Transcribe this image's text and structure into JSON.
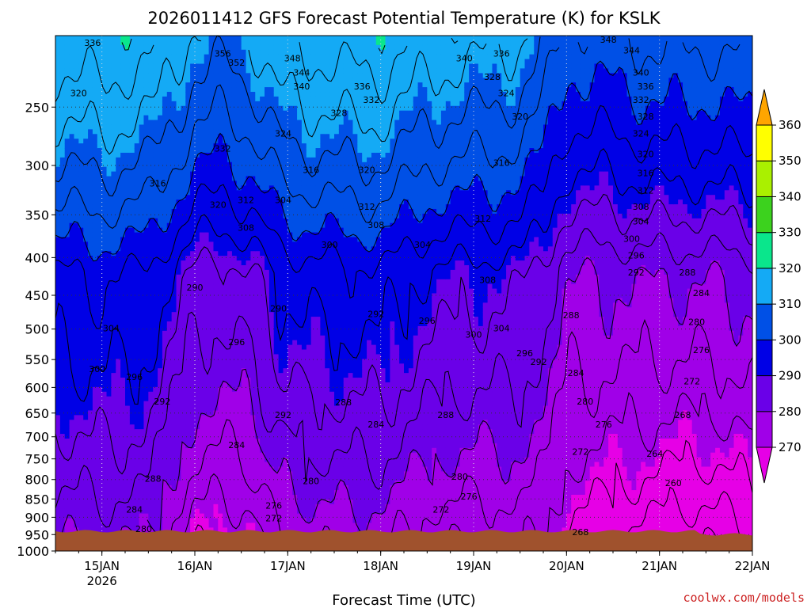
{
  "chart_data": {
    "type": "heatmap",
    "title": "2026011412 GFS Forecast Potential Temperature (K) for KSLK",
    "xlabel": "Forecast Time (UTC)",
    "ylabel": "",
    "credit": "coolwx.com/models",
    "y_axis": {
      "scale": "log",
      "reversed": true,
      "range": [
        1000,
        200
      ],
      "ticks": [
        250,
        300,
        350,
        400,
        450,
        500,
        550,
        600,
        650,
        700,
        750,
        800,
        850,
        900,
        950,
        1000
      ]
    },
    "x_axis": {
      "range": [
        "2026-01-14T12",
        "2026-01-22T00"
      ],
      "ticks": [
        {
          "label": "15JAN",
          "sub": "2026",
          "day": 15
        },
        {
          "label": "16JAN",
          "sub": "",
          "day": 16
        },
        {
          "label": "17JAN",
          "sub": "",
          "day": 17
        },
        {
          "label": "18JAN",
          "sub": "",
          "day": 18
        },
        {
          "label": "19JAN",
          "sub": "",
          "day": 19
        },
        {
          "label": "20JAN",
          "sub": "",
          "day": 20
        },
        {
          "label": "21JAN",
          "sub": "",
          "day": 21
        },
        {
          "label": "22JAN",
          "sub": "",
          "day": 22
        }
      ]
    },
    "grid": true,
    "colorbar": {
      "placement": "right",
      "levels": [
        270,
        280,
        290,
        300,
        310,
        320,
        330,
        340,
        350,
        360
      ],
      "colors": [
        "#e600e6",
        "#a000e8",
        "#6a00e8",
        "#0000e6",
        "#0050e6",
        "#14aaf5",
        "#0ae68c",
        "#3cd21e",
        "#aaf000",
        "#ffff00",
        "#ffa500"
      ],
      "extend": "both"
    },
    "terrain": {
      "pressure_hpa": 940,
      "color": "#a0522d"
    },
    "contour_interval_K": 4,
    "profiles": [
      {
        "day": 14.5,
        "surface": 279,
        "lapse": 0.0285
      },
      {
        "day": 15.0,
        "surface": 280,
        "lapse": 0.0285
      },
      {
        "day": 15.5,
        "surface": 279,
        "lapse": 0.028
      },
      {
        "day": 15.8,
        "surface": 272,
        "lapse": 0.032
      },
      {
        "day": 16.0,
        "surface": 268,
        "lapse": 0.033
      },
      {
        "day": 16.3,
        "surface": 267,
        "lapse": 0.033
      },
      {
        "day": 16.6,
        "surface": 268,
        "lapse": 0.034
      },
      {
        "day": 16.9,
        "surface": 274,
        "lapse": 0.032
      },
      {
        "day": 17.2,
        "surface": 276,
        "lapse": 0.031
      },
      {
        "day": 17.5,
        "surface": 276,
        "lapse": 0.032
      },
      {
        "day": 18.0,
        "surface": 276,
        "lapse": 0.033
      },
      {
        "day": 18.5,
        "surface": 272,
        "lapse": 0.033
      },
      {
        "day": 19.0,
        "surface": 271,
        "lapse": 0.033
      },
      {
        "day": 19.5,
        "surface": 272,
        "lapse": 0.03
      },
      {
        "day": 19.75,
        "surface": 270,
        "lapse": 0.028
      },
      {
        "day": 20.0,
        "surface": 266,
        "lapse": 0.025
      },
      {
        "day": 20.5,
        "surface": 263,
        "lapse": 0.03
      },
      {
        "day": 21.0,
        "surface": 260,
        "lapse": 0.036
      },
      {
        "day": 21.5,
        "surface": 259,
        "lapse": 0.037
      },
      {
        "day": 22.0,
        "surface": 262,
        "lapse": 0.034
      }
    ],
    "contour_labels": [
      {
        "text": "336",
        "day": 14.9,
        "p": 205
      },
      {
        "text": "356",
        "day": 16.3,
        "p": 212
      },
      {
        "text": "352",
        "day": 16.45,
        "p": 218
      },
      {
        "text": "348",
        "day": 17.05,
        "p": 215
      },
      {
        "text": "344",
        "day": 17.15,
        "p": 225
      },
      {
        "text": "340",
        "day": 17.15,
        "p": 235
      },
      {
        "text": "336",
        "day": 17.8,
        "p": 235
      },
      {
        "text": "332",
        "day": 17.9,
        "p": 245
      },
      {
        "text": "328",
        "day": 17.55,
        "p": 255
      },
      {
        "text": "340",
        "day": 18.9,
        "p": 215
      },
      {
        "text": "336",
        "day": 19.3,
        "p": 212
      },
      {
        "text": "328",
        "day": 19.2,
        "p": 228
      },
      {
        "text": "324",
        "day": 19.35,
        "p": 240
      },
      {
        "text": "320",
        "day": 19.5,
        "p": 258
      },
      {
        "text": "348",
        "day": 20.45,
        "p": 203
      },
      {
        "text": "344",
        "day": 20.7,
        "p": 210
      },
      {
        "text": "340",
        "day": 20.8,
        "p": 225
      },
      {
        "text": "336",
        "day": 20.85,
        "p": 235
      },
      {
        "text": "332",
        "day": 20.8,
        "p": 245
      },
      {
        "text": "328",
        "day": 20.85,
        "p": 258
      },
      {
        "text": "324",
        "day": 20.8,
        "p": 272
      },
      {
        "text": "320",
        "day": 20.85,
        "p": 290
      },
      {
        "text": "316",
        "day": 20.85,
        "p": 308
      },
      {
        "text": "312",
        "day": 20.85,
        "p": 325
      },
      {
        "text": "308",
        "day": 20.8,
        "p": 342
      },
      {
        "text": "304",
        "day": 20.8,
        "p": 358
      },
      {
        "text": "300",
        "day": 20.7,
        "p": 378
      },
      {
        "text": "296",
        "day": 20.75,
        "p": 398
      },
      {
        "text": "292",
        "day": 20.75,
        "p": 420
      },
      {
        "text": "288",
        "day": 21.3,
        "p": 420
      },
      {
        "text": "284",
        "day": 21.45,
        "p": 448
      },
      {
        "text": "280",
        "day": 21.4,
        "p": 490
      },
      {
        "text": "276",
        "day": 21.45,
        "p": 535
      },
      {
        "text": "272",
        "day": 21.35,
        "p": 590
      },
      {
        "text": "268",
        "day": 21.25,
        "p": 655
      },
      {
        "text": "264",
        "day": 20.95,
        "p": 740
      },
      {
        "text": "260",
        "day": 21.15,
        "p": 810
      },
      {
        "text": "268",
        "day": 20.15,
        "p": 945
      },
      {
        "text": "320",
        "day": 14.75,
        "p": 240
      },
      {
        "text": "332",
        "day": 16.3,
        "p": 285
      },
      {
        "text": "324",
        "day": 16.95,
        "p": 272
      },
      {
        "text": "316",
        "day": 15.6,
        "p": 318
      },
      {
        "text": "320",
        "day": 16.25,
        "p": 340
      },
      {
        "text": "312",
        "day": 16.55,
        "p": 335
      },
      {
        "text": "304",
        "day": 16.95,
        "p": 335
      },
      {
        "text": "316",
        "day": 17.25,
        "p": 305
      },
      {
        "text": "320",
        "day": 17.85,
        "p": 305
      },
      {
        "text": "312",
        "day": 17.85,
        "p": 342
      },
      {
        "text": "308",
        "day": 17.95,
        "p": 362
      },
      {
        "text": "304",
        "day": 18.45,
        "p": 385
      },
      {
        "text": "308",
        "day": 16.55,
        "p": 365
      },
      {
        "text": "300",
        "day": 17.45,
        "p": 385
      },
      {
        "text": "316",
        "day": 19.3,
        "p": 298
      },
      {
        "text": "312",
        "day": 19.1,
        "p": 355
      },
      {
        "text": "308",
        "day": 19.15,
        "p": 430
      },
      {
        "text": "304",
        "day": 19.3,
        "p": 500
      },
      {
        "text": "300",
        "day": 19.0,
        "p": 510
      },
      {
        "text": "296",
        "day": 19.55,
        "p": 540
      },
      {
        "text": "292",
        "day": 19.7,
        "p": 555
      },
      {
        "text": "290",
        "day": 16.0,
        "p": 440
      },
      {
        "text": "290",
        "day": 16.9,
        "p": 470
      },
      {
        "text": "292",
        "day": 17.95,
        "p": 478
      },
      {
        "text": "296",
        "day": 18.5,
        "p": 488
      },
      {
        "text": "296",
        "day": 16.45,
        "p": 522
      },
      {
        "text": "304",
        "day": 15.1,
        "p": 500
      },
      {
        "text": "300",
        "day": 14.95,
        "p": 568
      },
      {
        "text": "296",
        "day": 15.35,
        "p": 582
      },
      {
        "text": "292",
        "day": 15.65,
        "p": 628
      },
      {
        "text": "288",
        "day": 17.6,
        "p": 630
      },
      {
        "text": "284",
        "day": 17.95,
        "p": 675
      },
      {
        "text": "292",
        "day": 16.95,
        "p": 655
      },
      {
        "text": "288",
        "day": 18.7,
        "p": 655
      },
      {
        "text": "284",
        "day": 16.45,
        "p": 720
      },
      {
        "text": "280",
        "day": 17.25,
        "p": 805
      },
      {
        "text": "280",
        "day": 18.85,
        "p": 795
      },
      {
        "text": "276",
        "day": 16.85,
        "p": 870
      },
      {
        "text": "276",
        "day": 18.95,
        "p": 845
      },
      {
        "text": "272",
        "day": 16.85,
        "p": 905
      },
      {
        "text": "272",
        "day": 18.65,
        "p": 880
      },
      {
        "text": "288",
        "day": 15.55,
        "p": 800
      },
      {
        "text": "284",
        "day": 15.35,
        "p": 880
      },
      {
        "text": "280",
        "day": 15.45,
        "p": 935
      },
      {
        "text": "288",
        "day": 20.05,
        "p": 480
      },
      {
        "text": "284",
        "day": 20.1,
        "p": 575
      },
      {
        "text": "280",
        "day": 20.2,
        "p": 628
      },
      {
        "text": "276",
        "day": 20.4,
        "p": 675
      },
      {
        "text": "272",
        "day": 20.15,
        "p": 735
      }
    ]
  }
}
